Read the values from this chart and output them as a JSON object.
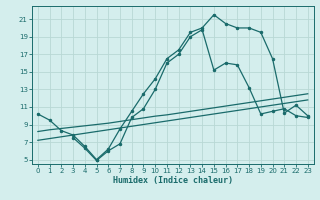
{
  "xlabel": "Humidex (Indice chaleur)",
  "xlim": [
    -0.5,
    23.5
  ],
  "ylim": [
    4.5,
    22.5
  ],
  "xticks": [
    0,
    1,
    2,
    3,
    4,
    5,
    6,
    7,
    8,
    9,
    10,
    11,
    12,
    13,
    14,
    15,
    16,
    17,
    18,
    19,
    20,
    21,
    22,
    23
  ],
  "yticks": [
    5,
    7,
    9,
    11,
    13,
    15,
    17,
    19,
    21
  ],
  "bg_color": "#d4eeed",
  "grid_color": "#b8d8d5",
  "line_color": "#1a6b6b",
  "curve1_x": [
    0,
    1,
    2,
    3,
    4,
    5,
    6,
    7,
    8,
    9,
    10,
    11,
    12,
    13,
    14,
    15,
    16,
    17,
    18,
    19,
    20,
    21,
    22,
    23
  ],
  "curve1_y": [
    10.2,
    9.5,
    8.3,
    7.8,
    6.5,
    5.0,
    6.2,
    8.5,
    10.5,
    12.5,
    14.2,
    16.5,
    17.5,
    19.5,
    20.0,
    21.5,
    20.5,
    20.0,
    20.0,
    19.5,
    16.5,
    10.3,
    11.2,
    10.0
  ],
  "curve2_x": [
    0,
    1,
    2,
    3,
    4,
    5,
    6,
    7,
    8,
    9,
    10,
    11,
    12,
    13,
    14,
    15,
    16,
    17,
    18,
    19,
    20,
    21,
    22,
    23
  ],
  "curve2_y": [
    8.2,
    8.4,
    8.55,
    8.7,
    8.85,
    9.0,
    9.15,
    9.35,
    9.55,
    9.75,
    9.95,
    10.1,
    10.3,
    10.5,
    10.7,
    10.9,
    11.1,
    11.3,
    11.5,
    11.7,
    11.9,
    12.1,
    12.3,
    12.5
  ],
  "curve3_x": [
    0,
    1,
    2,
    3,
    4,
    5,
    6,
    7,
    8,
    9,
    10,
    11,
    12,
    13,
    14,
    15,
    16,
    17,
    18,
    19,
    20,
    21,
    22,
    23
  ],
  "curve3_y": [
    7.2,
    7.4,
    7.6,
    7.8,
    8.0,
    8.2,
    8.4,
    8.6,
    8.8,
    9.0,
    9.2,
    9.4,
    9.6,
    9.8,
    10.0,
    10.2,
    10.4,
    10.6,
    10.8,
    11.0,
    11.2,
    11.4,
    11.6,
    11.8
  ],
  "curve4_x": [
    3,
    4,
    5,
    6,
    7,
    8,
    9,
    10,
    11,
    12,
    13,
    14,
    15,
    16,
    17,
    18,
    19,
    20,
    21,
    22,
    23
  ],
  "curve4_y": [
    7.5,
    6.3,
    4.9,
    6.0,
    6.8,
    9.8,
    10.8,
    13.0,
    16.0,
    17.0,
    19.0,
    19.8,
    15.2,
    16.0,
    15.8,
    13.2,
    10.2,
    10.5,
    10.8,
    10.0,
    9.8
  ]
}
